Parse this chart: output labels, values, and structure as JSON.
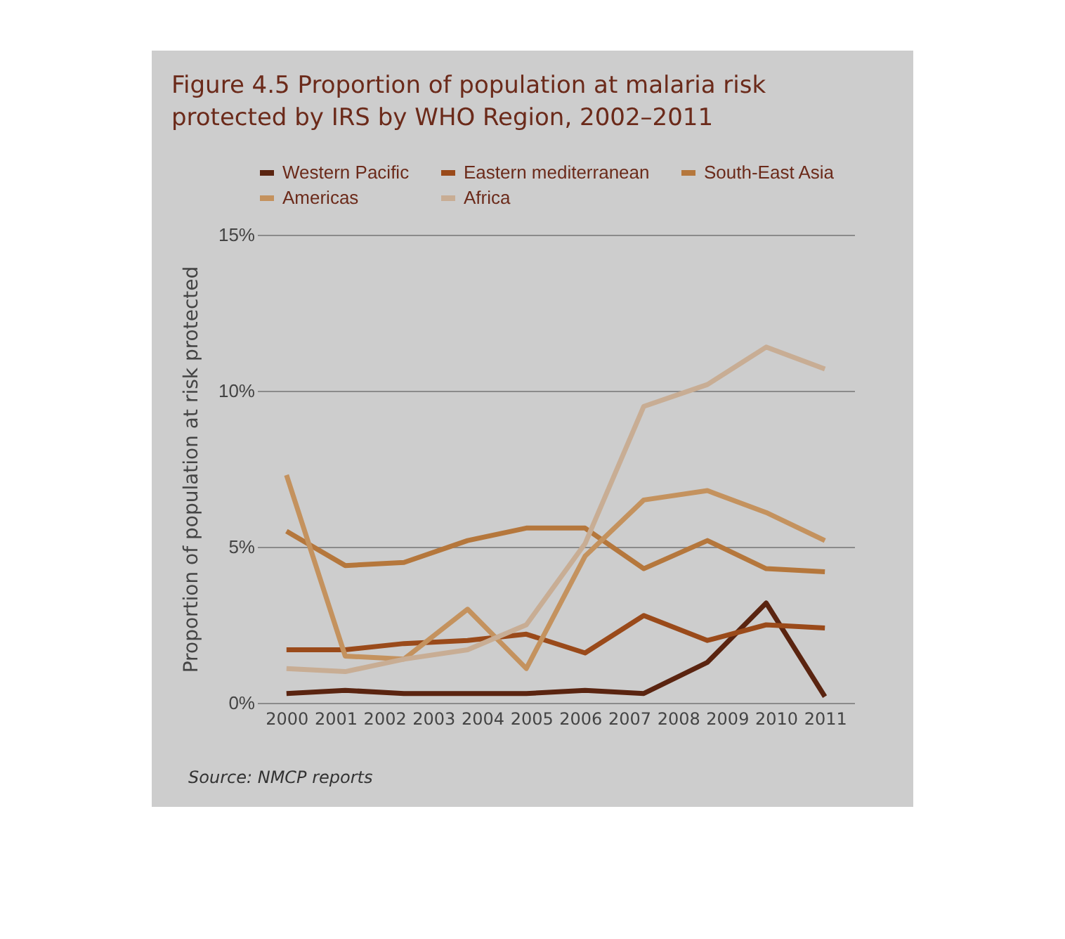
{
  "chart_data": {
    "type": "line",
    "title": "Figure 4.5 Proportion of population at malaria risk protected by IRS by WHO Region, 2002–2011",
    "ylabel": "Proportion of population at risk protected",
    "annotations": [
      "Source: NMCP reports"
    ],
    "x": [
      2000,
      2001.2,
      2002.4,
      2003.7,
      2004.9,
      2006.1,
      2007.3,
      2008.6,
      2009.8,
      2011
    ],
    "xlim": [
      1999.4,
      2011.6
    ],
    "xticks": [
      2000,
      2001,
      2002,
      2003,
      2004,
      2005,
      2006,
      2007,
      2008,
      2009,
      2010,
      2011
    ],
    "ylim": [
      0,
      15
    ],
    "yticks": [
      {
        "value": 0,
        "label": "0%"
      },
      {
        "value": 5,
        "label": "5%"
      },
      {
        "value": 10,
        "label": "10%"
      },
      {
        "value": 15,
        "label": "15%"
      }
    ],
    "grid": "y",
    "legend": "top right",
    "line_style": "solid",
    "marker": "none",
    "series": [
      {
        "name": "Western Pacific",
        "color": "#5a2410",
        "values": [
          0.3,
          0.4,
          0.3,
          0.3,
          0.3,
          0.4,
          0.3,
          1.3,
          3.2,
          0.2
        ]
      },
      {
        "name": "Eastern mediterranean",
        "color": "#9a4a1a",
        "values": [
          1.7,
          1.7,
          1.9,
          2.0,
          2.2,
          1.6,
          2.8,
          2.0,
          2.5,
          2.4
        ]
      },
      {
        "name": "South-East Asia",
        "color": "#b5773c",
        "values": [
          5.5,
          4.4,
          4.5,
          5.2,
          5.6,
          5.6,
          4.3,
          5.2,
          4.3,
          4.2
        ]
      },
      {
        "name": "Americas",
        "color": "#c4925e",
        "values": [
          7.3,
          1.5,
          1.4,
          3.0,
          1.1,
          4.7,
          6.5,
          6.8,
          6.1,
          5.2
        ]
      },
      {
        "name": "Africa",
        "color": "#c8ad94",
        "values": [
          1.1,
          1.0,
          1.4,
          1.7,
          2.5,
          5.1,
          9.5,
          10.2,
          11.4,
          10.7
        ]
      }
    ]
  }
}
